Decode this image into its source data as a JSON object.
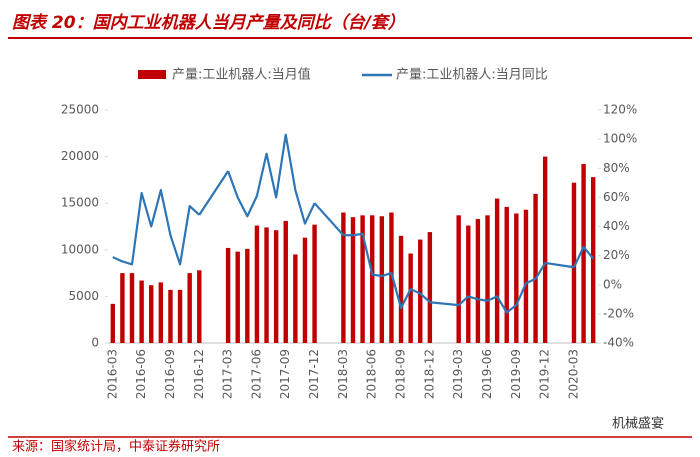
{
  "chart_data": {
    "type": "bar_line",
    "title": "图表 20：国内工业机器人当月产量及同比（台/套）",
    "source": "来源：国家统计局，中泰证券研究所",
    "watermark": "机械盛宴",
    "categories": [
      "2016-03",
      null,
      null,
      "2016-06",
      null,
      null,
      "2016-09",
      null,
      null,
      "2016-12",
      null,
      null,
      "2017-03",
      null,
      null,
      "2017-06",
      null,
      null,
      "2017-09",
      null,
      null,
      "2017-12",
      null,
      null,
      "2018-03",
      null,
      null,
      "2018-06",
      null,
      null,
      "2018-09",
      null,
      null,
      "2018-12",
      null,
      null,
      "2019-03",
      null,
      null,
      "2019-06",
      null,
      null,
      "2019-09",
      null,
      null,
      "2019-12",
      null,
      null,
      "2020-03",
      null,
      null
    ],
    "series": [
      {
        "name": "产量:工业机器人:当月值",
        "color": "#c00000",
        "type": "bar",
        "values": [
          4200,
          7500,
          7500,
          6700,
          6200,
          6500,
          5700,
          5700,
          7500,
          7800,
          null,
          null,
          10200,
          9800,
          10100,
          12600,
          12400,
          12100,
          13100,
          9500,
          11300,
          12700,
          null,
          null,
          14000,
          13500,
          13700,
          13700,
          13600,
          14000,
          11500,
          9600,
          11100,
          11900,
          null,
          null,
          13700,
          12600,
          13300,
          13700,
          15500,
          14600,
          13900,
          14300,
          16000,
          20000,
          null,
          null,
          17200,
          19200,
          17800
        ]
      },
      {
        "name": "产量:工业机器人:当月同比",
        "color": "#2e75b6",
        "type": "line",
        "axis": "y2",
        "values": [
          19,
          16,
          14,
          63,
          40,
          65,
          34,
          14,
          54,
          48,
          null,
          null,
          78,
          60,
          47,
          61,
          90,
          60,
          103,
          65,
          42,
          56,
          null,
          null,
          34,
          34,
          35,
          7,
          6,
          8,
          -16,
          -3,
          -6,
          -12,
          null,
          null,
          -14,
          -8,
          -10,
          -11,
          -8,
          -19,
          -14,
          1,
          4,
          15,
          null,
          null,
          12,
          26,
          18
        ]
      }
    ],
    "ylim": [
      0,
      25000
    ],
    "yticks": [
      0,
      5000,
      10000,
      15000,
      20000,
      25000
    ],
    "y2lim": [
      -40,
      120
    ],
    "y2ticks": [
      {
        "value": -40,
        "label": "-40%"
      },
      {
        "value": -20,
        "label": "-20%"
      },
      {
        "value": 0,
        "label": "0%"
      },
      {
        "value": 20,
        "label": "20%"
      },
      {
        "value": 40,
        "label": "40%"
      },
      {
        "value": 60,
        "label": "60%"
      },
      {
        "value": 80,
        "label": "80%"
      },
      {
        "value": 100,
        "label": "100%"
      },
      {
        "value": 120,
        "label": "120%"
      }
    ],
    "legend": "top",
    "grid": false
  }
}
